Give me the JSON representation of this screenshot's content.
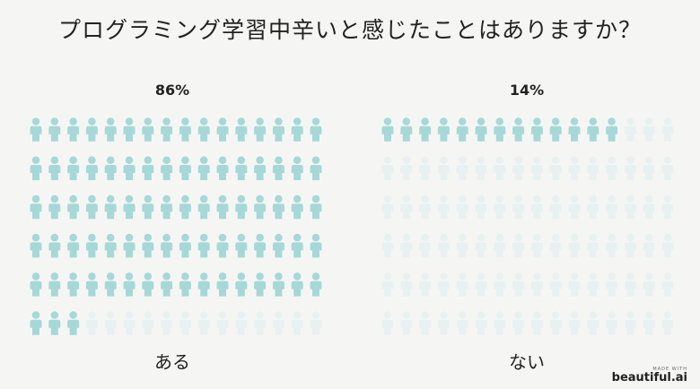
{
  "title": "プログラミング学習中辛いと感じたことはありますか？",
  "colors": {
    "active": "#a7d8d8",
    "inactive": "#e8f1f1"
  },
  "chart_data": {
    "type": "pictogram",
    "title": "プログラミング学習中辛いと感じたことはありますか？",
    "total_icons": 100,
    "series": [
      {
        "label": "ある",
        "percent": 86,
        "percent_label": "86%"
      },
      {
        "label": "ない",
        "percent": 14,
        "percent_label": "14%"
      }
    ]
  },
  "branding": {
    "made_with": "MADE WITH",
    "name": "beautiful.ai"
  }
}
